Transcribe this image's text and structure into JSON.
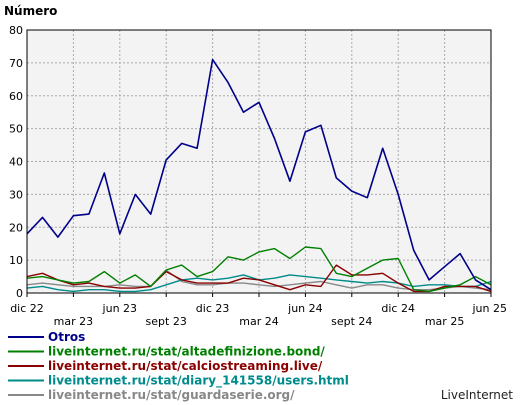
{
  "chart_data": {
    "type": "line",
    "ylabel": "Número",
    "ylim": [
      0,
      80
    ],
    "yticks": [
      0,
      10,
      20,
      30,
      40,
      50,
      60,
      70,
      80
    ],
    "grid": true,
    "legend_position": "bottom-left",
    "x_tick_labels": [
      "dic 22",
      "mar 23",
      "jun 23",
      "sept 23",
      "dic 23",
      "mar 24",
      "jun 24",
      "sept 24",
      "dic 24",
      "mar 25",
      "jun 25"
    ],
    "x": [
      "2022-12",
      "2023-01",
      "2023-02",
      "2023-03",
      "2023-04",
      "2023-05",
      "2023-06",
      "2023-07",
      "2023-08",
      "2023-09",
      "2023-10",
      "2023-11",
      "2023-12",
      "2024-01",
      "2024-02",
      "2024-03",
      "2024-04",
      "2024-05",
      "2024-06",
      "2024-07",
      "2024-08",
      "2024-09",
      "2024-10",
      "2024-11",
      "2024-12",
      "2025-01",
      "2025-02",
      "2025-03",
      "2025-04",
      "2025-05",
      "2025-06"
    ],
    "series": [
      {
        "name": "Otros",
        "color": "#00008b",
        "values": [
          18,
          23,
          17,
          23.5,
          24,
          36.5,
          18,
          30,
          24,
          40.5,
          45.5,
          44,
          71,
          64,
          55,
          58,
          47,
          34,
          49,
          51,
          35,
          31,
          29,
          44,
          30,
          13,
          4,
          8,
          12,
          4,
          1
        ]
      },
      {
        "name": "liveinternet.ru/stat/altadefinizione.bond/",
        "color": "#008000",
        "values": [
          4.5,
          5,
          4,
          3,
          3.5,
          6.5,
          3,
          5.5,
          2,
          7,
          8.5,
          5,
          6.5,
          11,
          10,
          12.5,
          13.5,
          10.5,
          14,
          13.5,
          6,
          5,
          7.5,
          10,
          10.5,
          1,
          0.5,
          1.5,
          2.5,
          5,
          2.5
        ]
      },
      {
        "name": "liveinternet.ru/stat/calciostreaming.live/",
        "color": "#8b0000",
        "values": [
          5,
          6,
          4,
          2.5,
          3,
          2,
          1.5,
          1.5,
          2,
          6.5,
          4,
          3,
          3,
          3,
          4.5,
          4,
          2.5,
          1,
          2.5,
          2,
          8.5,
          5.5,
          5.5,
          6,
          3,
          0.5,
          0.5,
          2,
          2,
          2,
          0.5
        ]
      },
      {
        "name": "liveinternet.ru/stat/diary_141558/users.html",
        "color": "#008b8b",
        "values": [
          1.5,
          2,
          1,
          0.5,
          1,
          1,
          0.5,
          0.5,
          1,
          2.5,
          4,
          4.5,
          4,
          4.5,
          5.5,
          4,
          4.5,
          5.5,
          5,
          4.5,
          4,
          3.5,
          3,
          3.5,
          3,
          2,
          2.5,
          2.5,
          2,
          2,
          3.5
        ]
      },
      {
        "name": "liveinternet.ru/stat/guardaserie.org/",
        "color": "#888888",
        "values": [
          2.5,
          3,
          2.5,
          2,
          2,
          2,
          2.5,
          2,
          2,
          7,
          3.5,
          2.5,
          2.5,
          3,
          3,
          2.5,
          2,
          2.5,
          3,
          3.5,
          2.5,
          1.5,
          2.5,
          2.5,
          1.5,
          1,
          1,
          1.5,
          2,
          1.5,
          1
        ]
      }
    ]
  },
  "watermark": "LiveInternet"
}
